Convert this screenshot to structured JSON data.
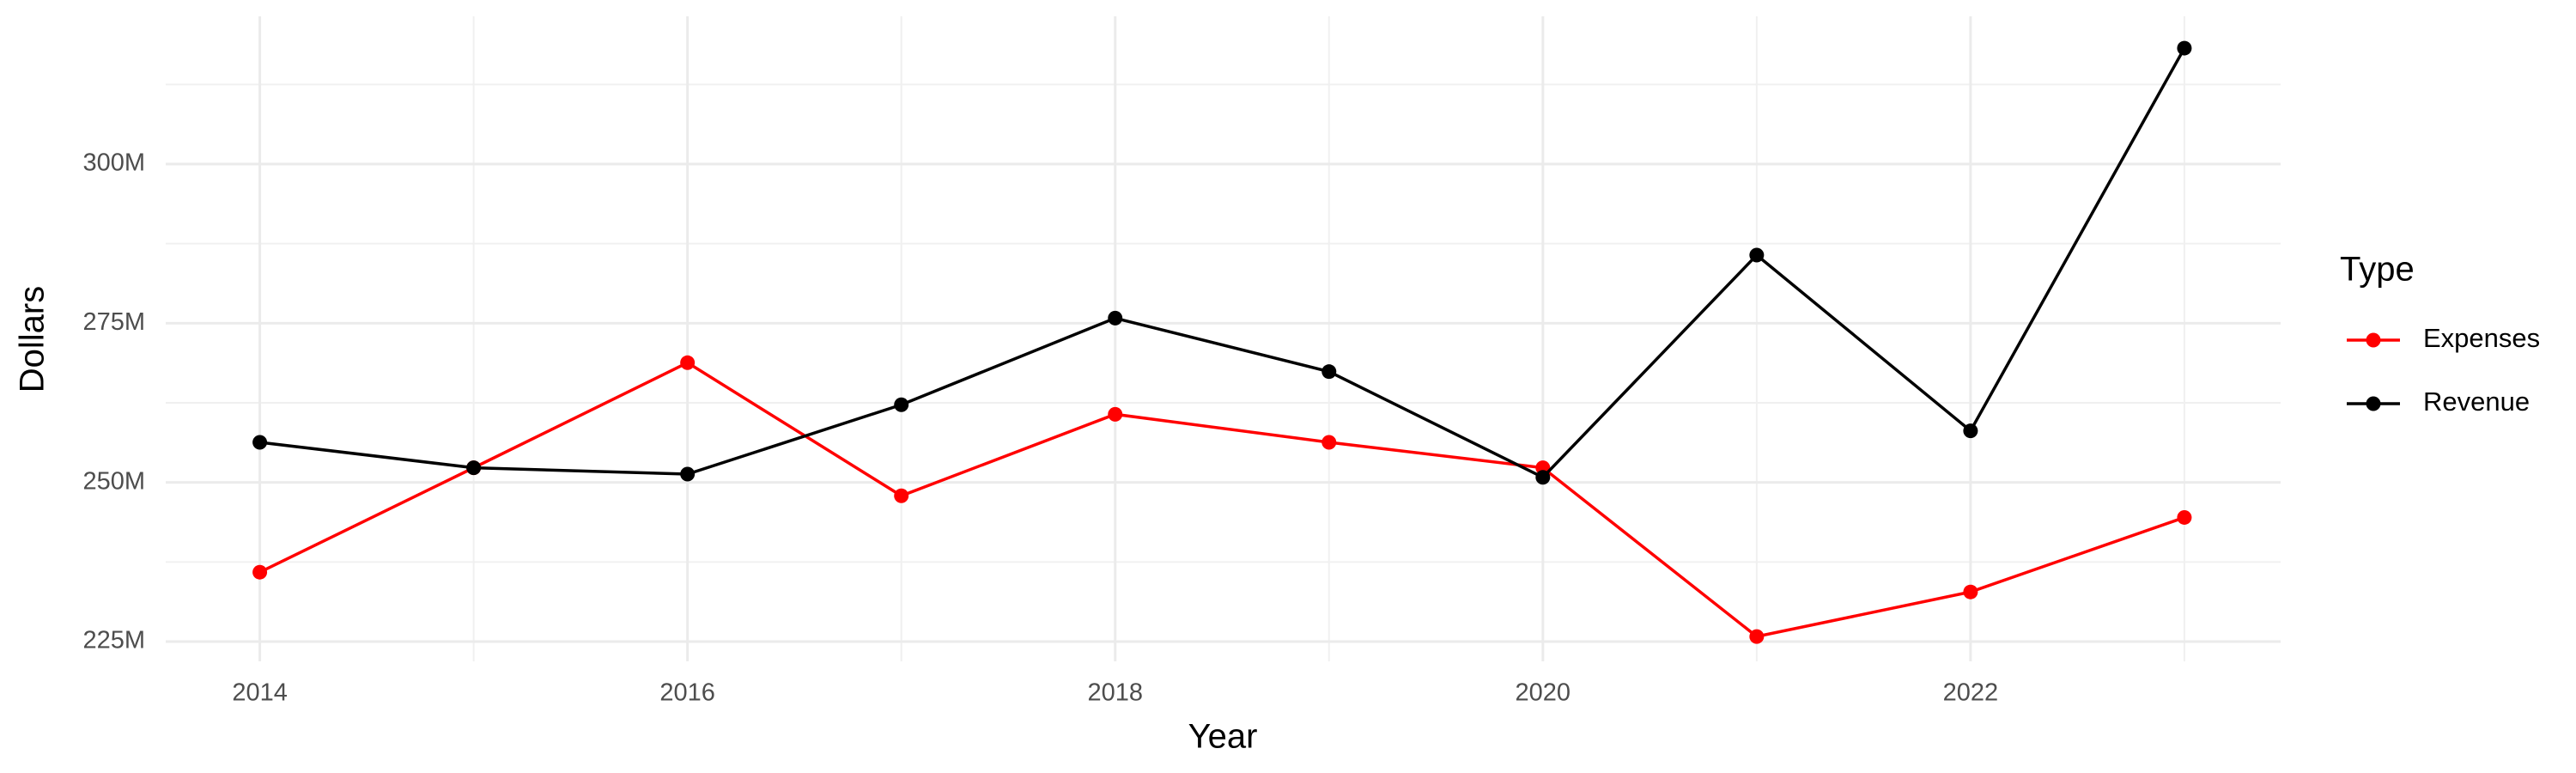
{
  "chart_data": {
    "type": "line",
    "x_label": "Year",
    "y_label": "Dollars",
    "legend_title": "Type",
    "x": [
      2014,
      2015,
      2016,
      2017,
      2018,
      2019,
      2020,
      2021,
      2022,
      2023
    ],
    "series": [
      {
        "name": "Expenses",
        "color": "#ff0000",
        "values": [
          235900000,
          252300000,
          268800000,
          247900000,
          260700000,
          256300000,
          252300000,
          225800000,
          232800000,
          244500000
        ]
      },
      {
        "name": "Revenue",
        "color": "#000000",
        "values": [
          256300000,
          252300000,
          251300000,
          262200000,
          275800000,
          267400000,
          250800000,
          285700000,
          258100000,
          318200000
        ]
      }
    ],
    "xlim": [
      2013.56,
      2023.45
    ],
    "xticks": [
      2014,
      2016,
      2018,
      2020,
      2022
    ],
    "ylim": [
      221900000,
      323200000
    ],
    "yticks": [
      {
        "value": 225000000,
        "label": "225M"
      },
      {
        "value": 250000000,
        "label": "250M"
      },
      {
        "value": 275000000,
        "label": "275M"
      },
      {
        "value": 300000000,
        "label": "300M"
      }
    ],
    "grid": true,
    "legend_position": "right"
  }
}
